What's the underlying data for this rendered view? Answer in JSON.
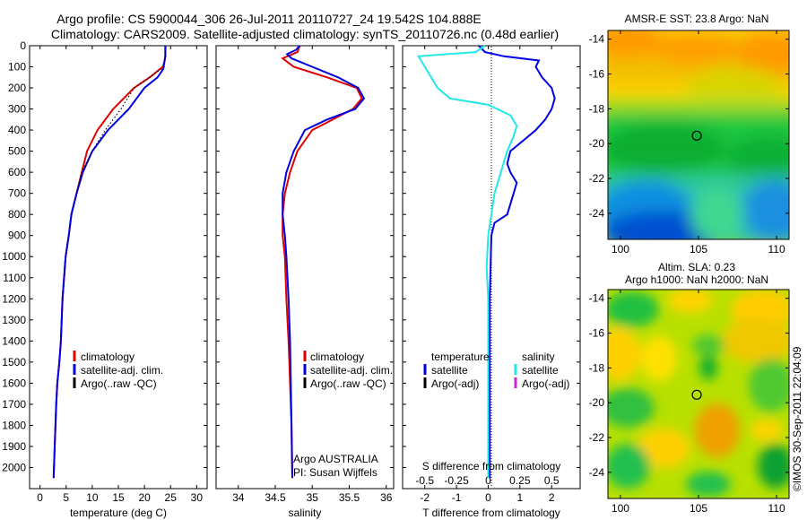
{
  "title_line1": "Argo profile: CS 5900044_306 26-Jul-2011 20110727_24 19.542S 104.888E",
  "title_line2": "Climatology: CARS2009. Satellite-adjusted climatology: synTS_20110726.nc (0.48d earlier)",
  "credit": "©IMOS 30-Sep-2011 22:04:09",
  "colors": {
    "climatology": "#e00000",
    "satellite": "#0000e0",
    "argo": "#000000",
    "sat_cyan": "#22e8e8",
    "argo_magenta": "#d020d0"
  },
  "chart_data": [
    {
      "type": "line",
      "xlabel": "temperature (deg C)",
      "ylabel": "",
      "xlim": [
        -2,
        32
      ],
      "ylim": [
        0,
        2100
      ],
      "y_reversed": true,
      "xticks": [
        0,
        5,
        10,
        15,
        20,
        25,
        30
      ],
      "yticks": [
        0,
        100,
        200,
        300,
        400,
        500,
        600,
        700,
        800,
        900,
        1000,
        1100,
        1200,
        1300,
        1400,
        1500,
        1600,
        1700,
        1800,
        1900,
        2000
      ],
      "legend": [
        "climatology",
        "satellite-adj. clim.",
        "Argo(..raw -QC)"
      ],
      "legend_placement": "lower-right",
      "series": [
        {
          "name": "climatology",
          "color": "#e00000",
          "style": "solid",
          "x": [
            24,
            24,
            23.8,
            23.5,
            21,
            18,
            14,
            11,
            9,
            8,
            7,
            6,
            5.5,
            4.9,
            4.3,
            4,
            3.7,
            3.3,
            3.1,
            2.8,
            2.6
          ],
          "y": [
            0,
            50,
            80,
            100,
            150,
            200,
            300,
            400,
            500,
            600,
            700,
            800,
            900,
            1000,
            1200,
            1400,
            1500,
            1600,
            1700,
            1900,
            2050
          ]
        },
        {
          "name": "satellite-adj. clim.",
          "color": "#0000e0",
          "style": "solid",
          "x": [
            24,
            24,
            23.8,
            23.6,
            22.5,
            20,
            17,
            13,
            10,
            8.2,
            7,
            6,
            5.5,
            4.9,
            4.3,
            4,
            3.7,
            3.3,
            3.1,
            2.8,
            2.6
          ],
          "y": [
            0,
            50,
            80,
            110,
            150,
            200,
            300,
            400,
            500,
            600,
            700,
            800,
            900,
            1000,
            1200,
            1400,
            1500,
            1600,
            1700,
            1900,
            2050
          ]
        },
        {
          "name": "Argo(..raw -QC)",
          "color": "#000000",
          "style": "dotted",
          "x": [
            24,
            23.8,
            21,
            18,
            15.5,
            12.5,
            10,
            8,
            7
          ],
          "y": [
            30,
            100,
            150,
            200,
            300,
            400,
            500,
            600,
            700
          ]
        }
      ]
    },
    {
      "type": "line",
      "xlabel": "salinity",
      "xlim": [
        33.7,
        36.1
      ],
      "ylim": [
        0,
        2100
      ],
      "y_reversed": true,
      "xticks": [
        34,
        34.5,
        35,
        35.5,
        36
      ],
      "legend": [
        "climatology",
        "satellite-adj. clim.",
        "Argo(..raw -QC)"
      ],
      "legend_placement": "lower-right",
      "annotation_1": "Argo AUSTRALIA",
      "annotation_2": "PI: Susan Wijffels",
      "series": [
        {
          "name": "climatology",
          "color": "#e00000",
          "style": "solid",
          "x": [
            34.83,
            34.8,
            34.6,
            34.75,
            35.2,
            35.6,
            35.67,
            35.55,
            35.0,
            34.8,
            34.7,
            34.63,
            34.6,
            34.6,
            34.63,
            34.65,
            34.68,
            34.7,
            34.72,
            34.73
          ],
          "y": [
            0,
            30,
            60,
            100,
            150,
            200,
            250,
            300,
            400,
            500,
            600,
            700,
            800,
            900,
            1000,
            1200,
            1400,
            1600,
            1800,
            2050
          ]
        },
        {
          "name": "satellite-adj. clim.",
          "color": "#0000e0",
          "style": "solid",
          "x": [
            34.83,
            34.78,
            34.66,
            34.72,
            35.0,
            35.35,
            35.62,
            35.7,
            35.58,
            35.2,
            34.9,
            34.75,
            34.65,
            34.6,
            34.6,
            34.63,
            34.65,
            34.68,
            34.7,
            34.72,
            34.73
          ],
          "y": [
            0,
            20,
            40,
            60,
            100,
            150,
            200,
            250,
            300,
            350,
            400,
            500,
            600,
            700,
            800,
            900,
            1000,
            1200,
            1400,
            1800,
            2050
          ]
        }
      ]
    },
    {
      "type": "line",
      "xlabel": "T difference from climatology",
      "xlabel_top": "S difference from climatology",
      "xlim": [
        -2.7,
        2.9
      ],
      "ylim": [
        0,
        2100
      ],
      "y_reversed": true,
      "xticks": [
        -2,
        -1,
        0,
        1,
        2
      ],
      "xticks_top": [
        -0.5,
        -0.25,
        0,
        0.25,
        0.5
      ],
      "legend_groups": [
        {
          "heading": "temperature",
          "items": [
            "satellite",
            "Argo(-adj)"
          ]
        },
        {
          "heading": "salinity",
          "items": [
            "satellite",
            "Argo(-adj)"
          ]
        }
      ],
      "legend_placement": "lower-center",
      "series": [
        {
          "name": "temperature satellite",
          "color": "#0000e0",
          "style": "solid",
          "x": [
            -0.3,
            -0.1,
            0.5,
            1.6,
            1.5,
            1.7,
            2.0,
            2.1,
            2.0,
            1.8,
            1.5,
            1.1,
            0.7,
            0.6,
            0.7,
            0.9,
            0.8,
            0.6,
            0.2,
            0.1,
            0.05,
            0.05,
            0.05
          ],
          "y": [
            0,
            30,
            50,
            70,
            100,
            150,
            200,
            250,
            300,
            350,
            400,
            450,
            500,
            560,
            600,
            650,
            700,
            800,
            840,
            900,
            1200,
            1600,
            2050
          ]
        },
        {
          "name": "salinity satellite",
          "color": "#22e8e8",
          "style": "solid",
          "x": [
            -0.1,
            -0.4,
            -2.2,
            -2.0,
            -1.6,
            -1.2,
            0.0,
            0.7,
            0.9,
            0.8,
            0.6,
            0.4,
            0.2,
            0.1,
            0.0,
            -0.05,
            0.0,
            0.0,
            0.0
          ],
          "y": [
            0,
            30,
            50,
            100,
            200,
            250,
            280,
            330,
            380,
            430,
            500,
            600,
            700,
            800,
            900,
            1050,
            1200,
            1600,
            2050
          ]
        }
      ]
    },
    {
      "type": "heatmap",
      "title": "AMSR-E SST: 23.8 Argo: NaN",
      "xlim": [
        99.2,
        110.8
      ],
      "ylim": [
        -25.5,
        -13.5
      ],
      "xticks": [
        100,
        105,
        110
      ],
      "yticks": [
        -14,
        -16,
        -18,
        -20,
        -22,
        -24
      ],
      "marker_lon": 104.888,
      "marker_lat": -19.542
    },
    {
      "type": "heatmap",
      "title_line1": "Altim. SLA: 0.23",
      "title_line2": "Argo h1000: NaN h2000: NaN",
      "xlim": [
        99.2,
        110.8
      ],
      "ylim": [
        -25.5,
        -13.5
      ],
      "xticks": [
        100,
        105,
        110
      ],
      "yticks": [
        -14,
        -16,
        -18,
        -20,
        -22,
        -24
      ],
      "marker_lon": 104.888,
      "marker_lat": -19.542
    }
  ]
}
